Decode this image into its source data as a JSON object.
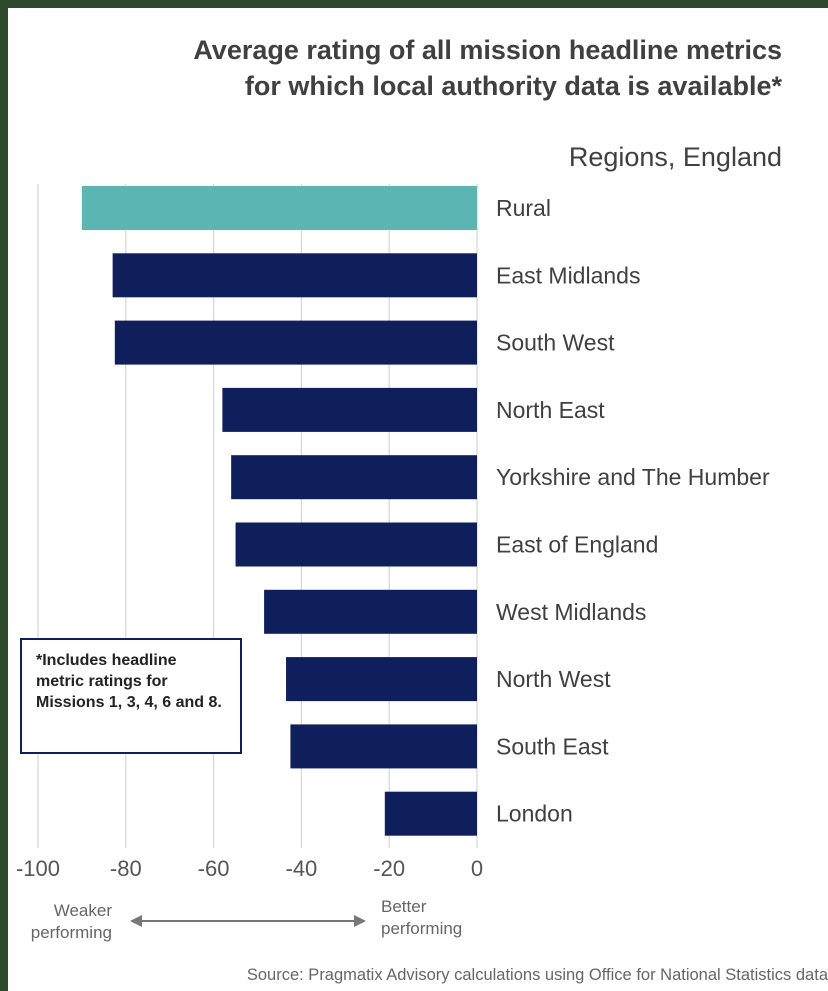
{
  "chart_data": {
    "type": "bar",
    "orientation": "horizontal",
    "title": "Average rating of all mission headline metrics for which local authority data is available*",
    "subtitle": "Regions, England",
    "categories": [
      "Rural",
      "East Midlands",
      "South West",
      "North East",
      "Yorkshire and The Humber",
      "East of England",
      "West Midlands",
      "North West",
      "South East",
      "London"
    ],
    "values": [
      -90,
      -83,
      -82.5,
      -58,
      -56,
      -55,
      -48.5,
      -43.5,
      -42.5,
      -21
    ],
    "bar_colors": [
      "#5bb5b3",
      "#0f1f5c",
      "#0f1f5c",
      "#0f1f5c",
      "#0f1f5c",
      "#0f1f5c",
      "#0f1f5c",
      "#0f1f5c",
      "#0f1f5c",
      "#0f1f5c"
    ],
    "xlim": [
      -100,
      0
    ],
    "xticks": [
      -100,
      -80,
      -60,
      -40,
      -20,
      0
    ],
    "xtick_labels": [
      "-100",
      "-80",
      "-60",
      "-40",
      "-20",
      "0"
    ],
    "grid": true
  },
  "annotations": {
    "note": "*Includes headline metric ratings for Missions 1, 3, 4, 6 and 8.",
    "weaker": "Weaker performing",
    "better": "Better performing"
  },
  "source": "Source: Pragmatix Advisory calculations using Office for National Statistics data"
}
